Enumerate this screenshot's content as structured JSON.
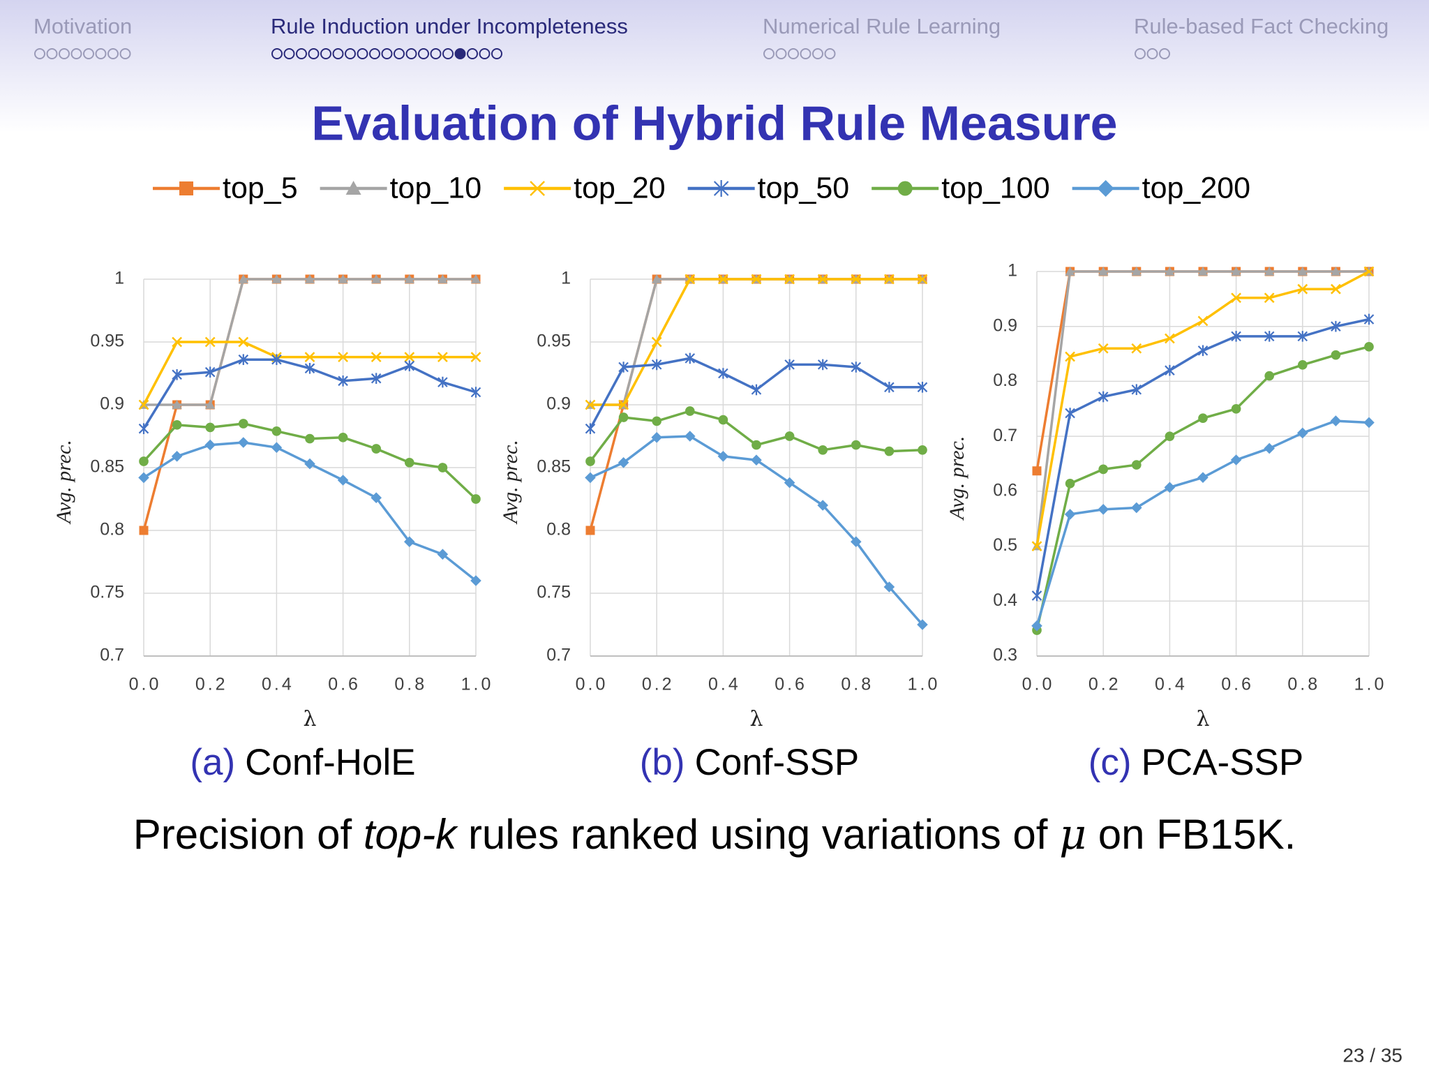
{
  "nav": [
    {
      "label": "Motivation",
      "dots": 8,
      "current": -1
    },
    {
      "label": "Rule Induction under Incompleteness",
      "dots": 19,
      "current": 15
    },
    {
      "label": "Numerical Rule Learning",
      "dots": 6,
      "current": -1
    },
    {
      "label": "Rule-based Fact Checking",
      "dots": 3,
      "current": -1
    }
  ],
  "title": "Evaluation of Hybrid Rule Measure",
  "legend": [
    {
      "name": "top_5",
      "color": "#ed7d31",
      "marker": "square"
    },
    {
      "name": "top_10",
      "color": "#a5a5a5",
      "marker": "triangle"
    },
    {
      "name": "top_20",
      "color": "#ffc000",
      "marker": "x"
    },
    {
      "name": "top_50",
      "color": "#4472c4",
      "marker": "star"
    },
    {
      "name": "top_100",
      "color": "#70ad47",
      "marker": "circle"
    },
    {
      "name": "top_200",
      "color": "#5b9bd5",
      "marker": "diamond"
    }
  ],
  "chart_data": [
    {
      "type": "line",
      "label": "(a)",
      "caption": "Conf-HolE",
      "x_label": "λ",
      "y_label": "Avg. prec.",
      "x": [
        0,
        0.1,
        0.2,
        0.3,
        0.4,
        0.5,
        0.6,
        0.7,
        0.8,
        0.9,
        1.0
      ],
      "xlim": [
        0,
        1
      ],
      "xticks": [
        {
          "value": 0,
          "label": "0.0"
        },
        {
          "value": 0.2,
          "label": "0.2"
        },
        {
          "value": 0.4,
          "label": "0.4"
        },
        {
          "value": 0.6,
          "label": "0.6"
        },
        {
          "value": 0.8,
          "label": "0.8"
        },
        {
          "value": 1,
          "label": "1.0"
        }
      ],
      "ylim": [
        0.7,
        1
      ],
      "yticks": [
        0.7,
        0.75,
        0.8,
        0.85,
        0.9,
        0.95,
        1
      ],
      "grid": true,
      "series": [
        {
          "values": [
            0.8,
            0.9,
            0.9,
            1,
            1,
            1,
            1,
            1,
            1,
            1,
            1
          ]
        },
        {
          "values": [
            0.9,
            0.9,
            0.9,
            1,
            1,
            1,
            1,
            1,
            1,
            1,
            1
          ]
        },
        {
          "values": [
            0.9,
            0.95,
            0.95,
            0.95,
            0.938,
            0.938,
            0.938,
            0.938,
            0.938,
            0.938,
            0.938
          ]
        },
        {
          "values": [
            0.881,
            0.924,
            0.926,
            0.936,
            0.936,
            0.929,
            0.919,
            0.921,
            0.931,
            0.918,
            0.91
          ]
        },
        {
          "values": [
            0.855,
            0.884,
            0.882,
            0.885,
            0.879,
            0.873,
            0.874,
            0.865,
            0.854,
            0.85,
            0.825
          ]
        },
        {
          "values": [
            0.842,
            0.859,
            0.868,
            0.87,
            0.866,
            0.853,
            0.84,
            0.826,
            0.791,
            0.781,
            0.76
          ]
        }
      ]
    },
    {
      "type": "line",
      "label": "(b)",
      "caption": "Conf-SSP",
      "x_label": "λ",
      "y_label": "Avg. prec.",
      "x": [
        0,
        0.1,
        0.2,
        0.3,
        0.4,
        0.5,
        0.6,
        0.7,
        0.8,
        0.9,
        1.0
      ],
      "xlim": [
        0,
        1
      ],
      "xticks": [
        {
          "value": 0,
          "label": "0.0"
        },
        {
          "value": 0.2,
          "label": "0.2"
        },
        {
          "value": 0.4,
          "label": "0.4"
        },
        {
          "value": 0.6,
          "label": "0.6"
        },
        {
          "value": 0.8,
          "label": "0.8"
        },
        {
          "value": 1,
          "label": "1.0"
        }
      ],
      "ylim": [
        0.7,
        1
      ],
      "yticks": [
        0.7,
        0.75,
        0.8,
        0.85,
        0.9,
        0.95,
        1
      ],
      "grid": true,
      "series": [
        {
          "values": [
            0.8,
            0.9,
            1,
            1,
            1,
            1,
            1,
            1,
            1,
            1,
            1
          ]
        },
        {
          "values": [
            0.9,
            0.9,
            1,
            1,
            1,
            1,
            1,
            1,
            1,
            1,
            1
          ]
        },
        {
          "values": [
            0.9,
            0.9,
            0.95,
            1,
            1,
            1,
            1,
            1,
            1,
            1,
            1
          ]
        },
        {
          "values": [
            0.881,
            0.93,
            0.932,
            0.937,
            0.925,
            0.912,
            0.932,
            0.932,
            0.93,
            0.914,
            0.914
          ]
        },
        {
          "values": [
            0.855,
            0.89,
            0.887,
            0.895,
            0.888,
            0.868,
            0.875,
            0.864,
            0.868,
            0.863,
            0.864
          ]
        },
        {
          "values": [
            0.842,
            0.854,
            0.874,
            0.875,
            0.859,
            0.856,
            0.838,
            0.82,
            0.791,
            0.755,
            0.725
          ]
        }
      ]
    },
    {
      "type": "line",
      "label": "(c)",
      "caption": "PCA-SSP",
      "x_label": "λ",
      "y_label": "Avg. prec.",
      "x": [
        0,
        0.1,
        0.2,
        0.3,
        0.4,
        0.5,
        0.6,
        0.7,
        0.8,
        0.9,
        1.0
      ],
      "xlim": [
        0,
        1
      ],
      "xticks": [
        {
          "value": 0,
          "label": "0.0"
        },
        {
          "value": 0.2,
          "label": "0.2"
        },
        {
          "value": 0.4,
          "label": "0.4"
        },
        {
          "value": 0.6,
          "label": "0.6"
        },
        {
          "value": 0.8,
          "label": "0.8"
        },
        {
          "value": 1,
          "label": "1.0"
        }
      ],
      "ylim": [
        0.3,
        1
      ],
      "yticks": [
        0.3,
        0.4,
        0.5,
        0.6,
        0.7,
        0.8,
        0.9,
        1
      ],
      "grid": true,
      "series": [
        {
          "values": [
            0.637,
            1,
            1,
            1,
            1,
            1,
            1,
            1,
            1,
            1,
            1
          ]
        },
        {
          "values": [
            0.5,
            1,
            1,
            1,
            1,
            1,
            1,
            1,
            1,
            1,
            1
          ]
        },
        {
          "values": [
            0.5,
            0.845,
            0.86,
            0.86,
            0.878,
            0.91,
            0.952,
            0.952,
            0.968,
            0.968,
            1
          ]
        },
        {
          "values": [
            0.41,
            0.742,
            0.772,
            0.785,
            0.82,
            0.856,
            0.882,
            0.882,
            0.882,
            0.9,
            0.913
          ]
        },
        {
          "values": [
            0.347,
            0.614,
            0.64,
            0.648,
            0.7,
            0.733,
            0.75,
            0.81,
            0.83,
            0.848,
            0.863
          ]
        },
        {
          "values": [
            0.355,
            0.558,
            0.567,
            0.57,
            0.607,
            0.625,
            0.657,
            0.678,
            0.706,
            0.728,
            0.725
          ]
        }
      ]
    }
  ],
  "caption": [
    "Precision of ",
    "top-k",
    " rules ranked using variations of ",
    "μ",
    " on FB15K."
  ],
  "page_number": "23 / 35"
}
